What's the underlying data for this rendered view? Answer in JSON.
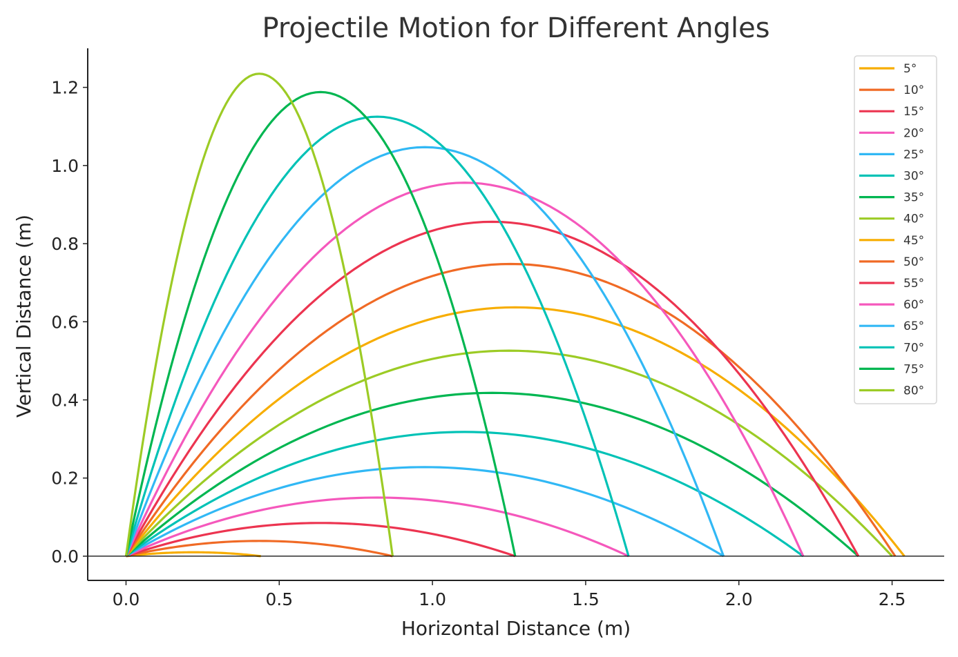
{
  "chart_data": {
    "type": "line",
    "title": "Projectile Motion for Different Angles",
    "xlabel": "Horizontal Distance (m)",
    "ylabel": "Vertical Distance (m)",
    "xlim": [
      -0.125,
      2.67
    ],
    "ylim": [
      -0.062,
      1.3
    ],
    "xticks": [
      0.0,
      0.5,
      1.0,
      1.5,
      2.0,
      2.5
    ],
    "xtick_labels": [
      "0.0",
      "0.5",
      "1.0",
      "1.5",
      "2.0",
      "2.5"
    ],
    "yticks": [
      0.0,
      0.2,
      0.4,
      0.6,
      0.8,
      1.0,
      1.2
    ],
    "ytick_labels": [
      "0.0",
      "0.2",
      "0.4",
      "0.6",
      "0.8",
      "1.0",
      "1.2"
    ],
    "grid": false,
    "legend_position": "top-right",
    "baseline_y": 0,
    "series": [
      {
        "name": "5°",
        "angle_deg": 5,
        "range": 0.44,
        "max_height": 0.01,
        "color": "#f7ad00"
      },
      {
        "name": "10°",
        "angle_deg": 10,
        "range": 0.87,
        "max_height": 0.039,
        "color": "#f06a25"
      },
      {
        "name": "15°",
        "angle_deg": 15,
        "range": 1.27,
        "max_height": 0.085,
        "color": "#ec3450"
      },
      {
        "name": "20°",
        "angle_deg": 20,
        "range": 1.64,
        "max_height": 0.15,
        "color": "#f558bc"
      },
      {
        "name": "25°",
        "angle_deg": 25,
        "range": 1.95,
        "max_height": 0.228,
        "color": "#31b8f5"
      },
      {
        "name": "30°",
        "angle_deg": 30,
        "range": 2.21,
        "max_height": 0.318,
        "color": "#00c2b6"
      },
      {
        "name": "35°",
        "angle_deg": 35,
        "range": 2.39,
        "max_height": 0.418,
        "color": "#00b651"
      },
      {
        "name": "40°",
        "angle_deg": 40,
        "range": 2.5,
        "max_height": 0.526,
        "color": "#9ccb25"
      },
      {
        "name": "45°",
        "angle_deg": 45,
        "range": 2.54,
        "max_height": 0.637,
        "color": "#f7ad00"
      },
      {
        "name": "50°",
        "angle_deg": 50,
        "range": 2.51,
        "max_height": 0.748,
        "color": "#f06a25"
      },
      {
        "name": "55°",
        "angle_deg": 55,
        "range": 2.39,
        "max_height": 0.856,
        "color": "#ec3450"
      },
      {
        "name": "60°",
        "angle_deg": 60,
        "range": 2.21,
        "max_height": 0.956,
        "color": "#f558bc"
      },
      {
        "name": "65°",
        "angle_deg": 65,
        "range": 1.95,
        "max_height": 1.047,
        "color": "#31b8f5"
      },
      {
        "name": "70°",
        "angle_deg": 70,
        "range": 1.64,
        "max_height": 1.125,
        "color": "#00c2b6"
      },
      {
        "name": "75°",
        "angle_deg": 75,
        "range": 1.27,
        "max_height": 1.188,
        "color": "#00b651"
      },
      {
        "name": "80°",
        "angle_deg": 80,
        "range": 0.87,
        "max_height": 1.235,
        "color": "#9ccb25"
      }
    ]
  }
}
